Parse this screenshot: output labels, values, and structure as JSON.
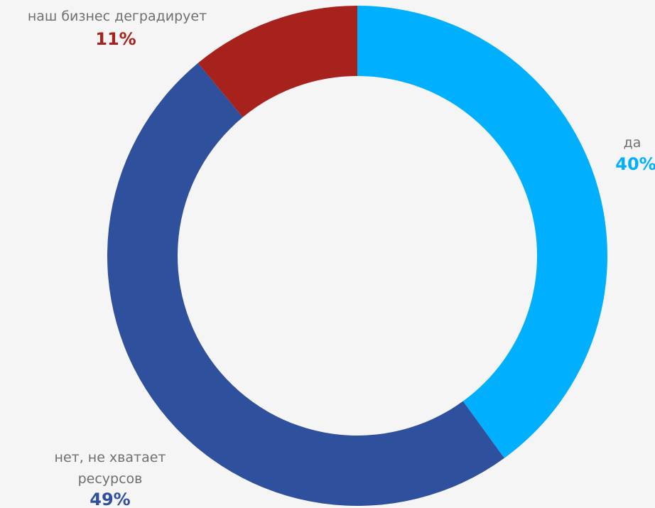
{
  "chart_data": {
    "type": "pie",
    "donut": true,
    "slices": [
      {
        "label": "да",
        "value": 40,
        "value_label": "40%",
        "color": "#00b0ff"
      },
      {
        "label": "нет, не хватает ресурсов",
        "label_lines": [
          "нет, не хватает",
          "ресурсов"
        ],
        "value": 49,
        "value_label": "49%",
        "color": "#2f509c"
      },
      {
        "label": "наш бизнес деградирует",
        "value": 11,
        "value_label": "11%",
        "color": "#a8221d"
      }
    ]
  }
}
